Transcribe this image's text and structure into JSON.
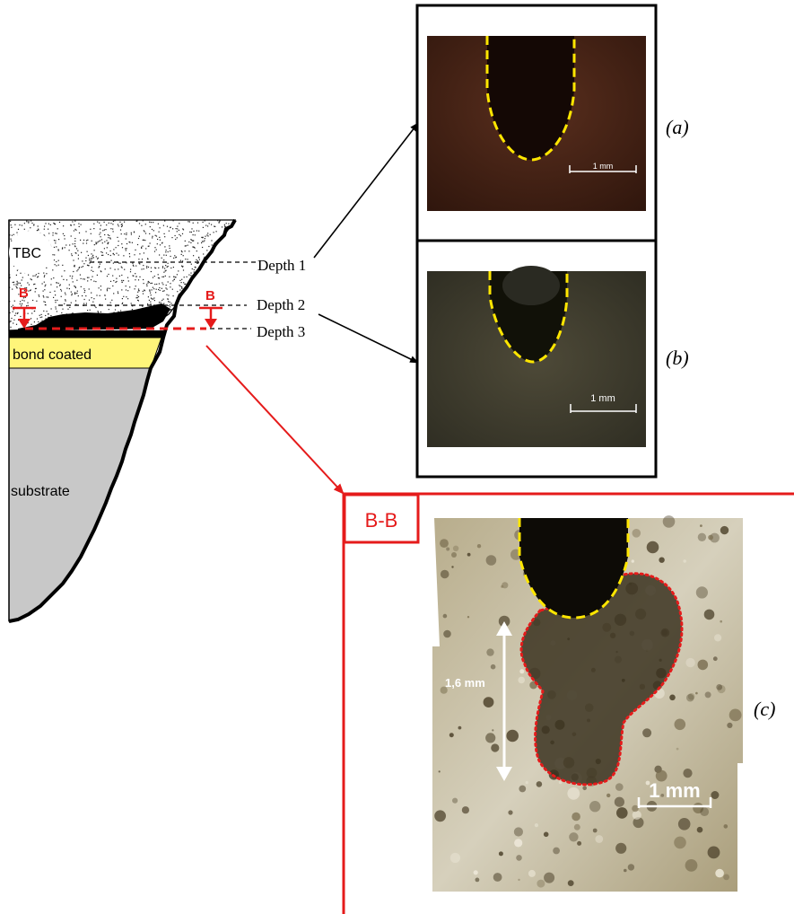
{
  "schematic": {
    "tbc_label": "TBC",
    "bond_label": "bond coated",
    "substrate_label": "substrate",
    "section_marker": "B",
    "depth_labels": [
      "Depth 1",
      "Depth 2",
      "Depth 3"
    ]
  },
  "panels": {
    "a": {
      "label": "(a)",
      "scale_label": "1 mm"
    },
    "b": {
      "label": "(b)",
      "scale_label": "1 mm"
    },
    "c": {
      "label": "(c)",
      "scale_label": "1 mm",
      "depth_measure": "1,6 mm"
    }
  },
  "section": {
    "title": "B-B"
  },
  "colors": {
    "section_red": "#e51b1b",
    "indent_outline": "#ffe600",
    "damage_outline": "#e51b1b",
    "bond_coat": "#fff57a",
    "substrate": "#c8c8c8"
  }
}
